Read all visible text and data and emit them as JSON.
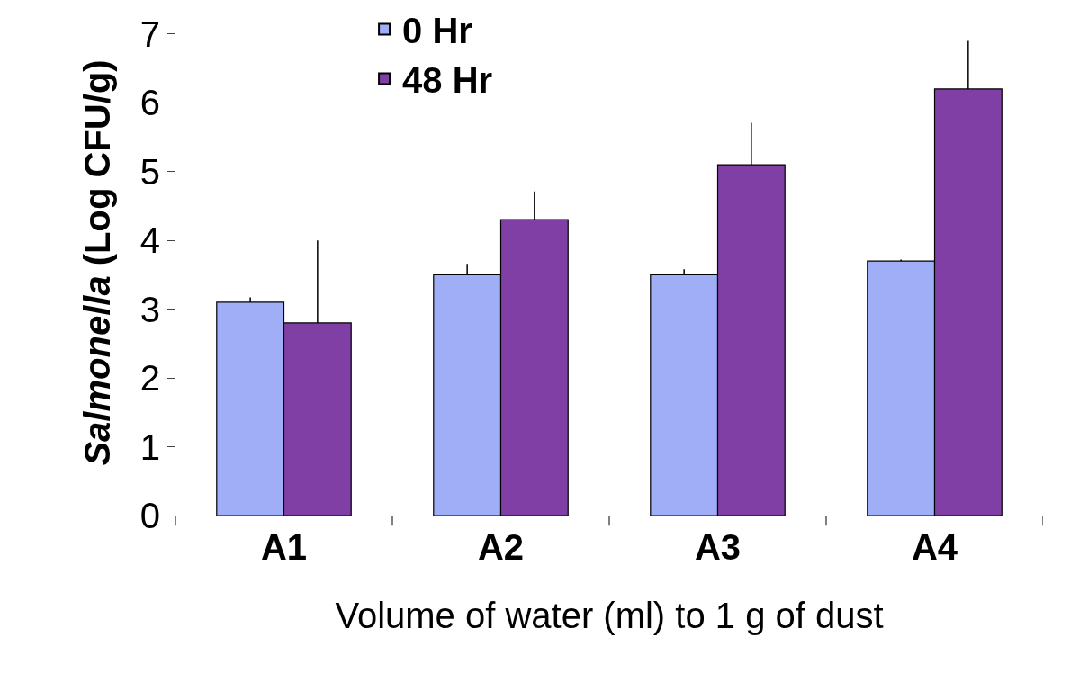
{
  "chart_data": {
    "type": "bar",
    "xlabel": "Volume of water (ml) to 1 g of dust",
    "ylabel": "Salmonella (Log CFU/g)",
    "categories": [
      "A1",
      "A2",
      "A3",
      "A4"
    ],
    "series": [
      {
        "name": "0 Hr",
        "color": "#a0aef8",
        "values": [
          3.1,
          3.5,
          3.5,
          3.7
        ],
        "errors": [
          [
            3.1,
            3.17
          ],
          [
            3.5,
            3.66
          ],
          [
            3.5,
            3.58
          ],
          [
            3.7,
            3.72
          ]
        ]
      },
      {
        "name": "48 Hr",
        "color": "#7f3fa5",
        "values": [
          2.8,
          4.3,
          5.1,
          6.2
        ],
        "errors": [
          [
            2.8,
            4.0
          ],
          [
            4.3,
            4.71
          ],
          [
            5.1,
            5.71
          ],
          [
            6.2,
            6.9
          ]
        ]
      }
    ],
    "ylim": [
      0,
      7.35
    ],
    "yticks": [
      0,
      1,
      2,
      3,
      4,
      5,
      6,
      7
    ],
    "legend": "top left"
  }
}
